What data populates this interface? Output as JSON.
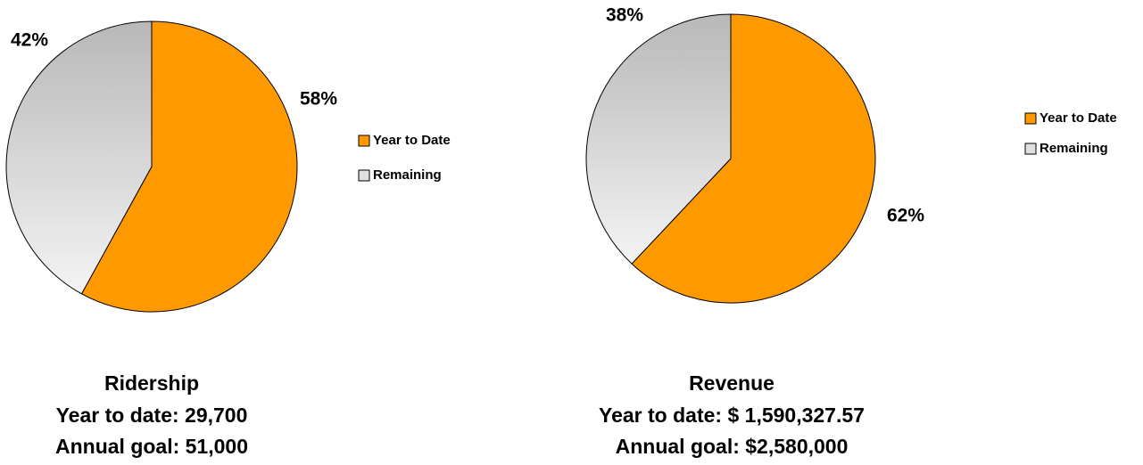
{
  "chart_data": [
    {
      "type": "pie",
      "categories": [
        "Year to Date",
        "Remaining"
      ],
      "values": [
        58,
        42
      ],
      "value_labels": [
        "58%",
        "42%"
      ],
      "colors": [
        "#ff9900",
        "#c8c8c8"
      ],
      "legend": "right",
      "caption": [
        "Ridership",
        "Year to date: 29,700",
        "Annual goal: 51,000"
      ]
    },
    {
      "type": "pie",
      "categories": [
        "Year to Date",
        "Remaining"
      ],
      "values": [
        62,
        38
      ],
      "value_labels": [
        "62%",
        "38%"
      ],
      "colors": [
        "#ff9900",
        "#c8c8c8"
      ],
      "legend": "right",
      "caption": [
        "Revenue",
        "Year to date: $ 1,590,327.57",
        "Annual goal: $2,580,000"
      ]
    }
  ]
}
